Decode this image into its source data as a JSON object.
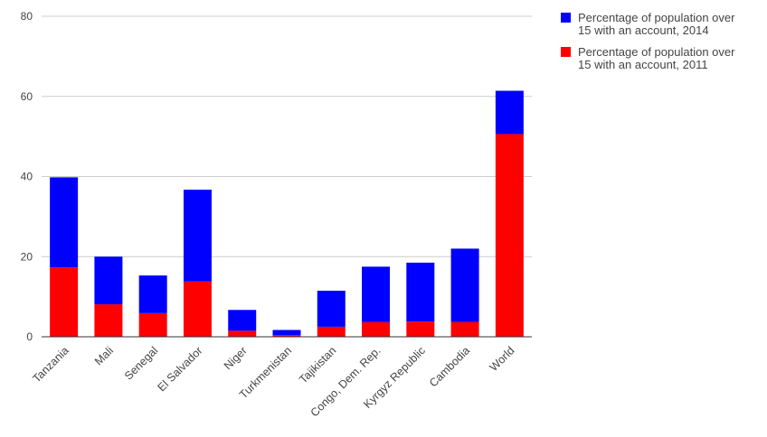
{
  "chart_data": {
    "type": "bar",
    "stacked": true,
    "categories": [
      "Tanzania",
      "Mali",
      "Senegal",
      "El Salvador",
      "Niger",
      "Turkmenistan",
      "Tajikistan",
      "Congo, Dem. Rep.",
      "Kyrgyz Republic",
      "Cambodia",
      "World"
    ],
    "series": [
      {
        "name": "Percentage of population over 15 with an account, 2011",
        "legend_lines": [
          "Percentage of population over",
          "15 with an account, 2011"
        ],
        "color": "#ff0000",
        "values": [
          17.3,
          8.1,
          5.9,
          13.8,
          1.5,
          0.4,
          2.5,
          3.7,
          3.8,
          3.7,
          50.6
        ]
      },
      {
        "name": "Percentage of population over 15 with an account, 2014",
        "legend_lines": [
          "Percentage of population over",
          "15 with an account, 2014"
        ],
        "color": "#0000ff",
        "values": [
          22.5,
          11.9,
          9.4,
          22.9,
          5.2,
          1.3,
          9.0,
          13.8,
          14.7,
          18.3,
          10.8
        ]
      }
    ],
    "legend_order": [
      1,
      0
    ],
    "ylim": [
      0,
      80
    ],
    "yticks": [
      0,
      20,
      40,
      60,
      80
    ],
    "grid": true,
    "legend_position": "right",
    "title": "",
    "xlabel": "",
    "ylabel": ""
  }
}
